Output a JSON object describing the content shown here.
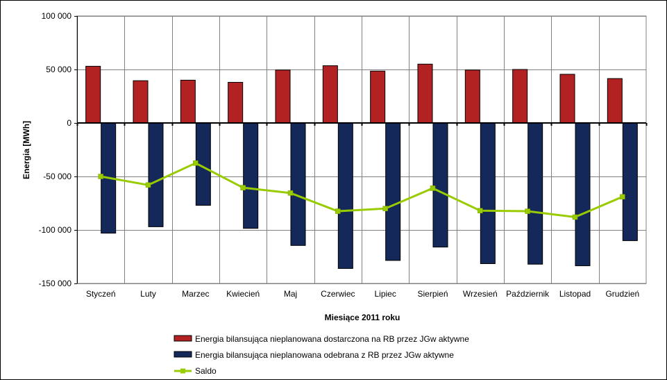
{
  "chart_data": {
    "type": "bar",
    "categories": [
      "Styczeń",
      "Luty",
      "Marzec",
      "Kwiecień",
      "Maj",
      "Czerwiec",
      "Lipiec",
      "Sierpień",
      "Wrzesień",
      "Październik",
      "Listopad",
      "Grudzień"
    ],
    "series": [
      {
        "name": "Energia bilansująca nieplanowana dostarczona na RB przez JGw aktywne",
        "kind": "bar",
        "color": "#B22222",
        "values": [
          53000,
          39500,
          40000,
          38000,
          49500,
          53500,
          48500,
          55000,
          49500,
          50000,
          45500,
          41500
        ]
      },
      {
        "name": "Energia bilansująca nieplanowana odebrana z RB przez JGw aktywne",
        "kind": "bar",
        "color": "#14285A",
        "values": [
          -103000,
          -97000,
          -77000,
          -98500,
          -114500,
          -136000,
          -128500,
          -116000,
          -131500,
          -132000,
          -133500,
          -110000
        ]
      },
      {
        "name": "Saldo",
        "kind": "line",
        "color": "#99CC00",
        "values": [
          -50000,
          -58000,
          -37500,
          -60500,
          -65500,
          -82500,
          -80000,
          -61000,
          -82000,
          -82500,
          -88000,
          -69000
        ]
      }
    ],
    "xlabel": "Miesiące 2011  roku",
    "ylabel": "Energia  [MWh]",
    "ylim": [
      -150000,
      100000
    ],
    "yticks": [
      100000,
      50000,
      0,
      -50000,
      -100000,
      -150000
    ],
    "ytick_labels": [
      "100 000",
      "50 000",
      "0",
      "-50 000",
      "-100 000",
      "-150 000"
    ],
    "grid": true,
    "legend_position": "bottom"
  }
}
